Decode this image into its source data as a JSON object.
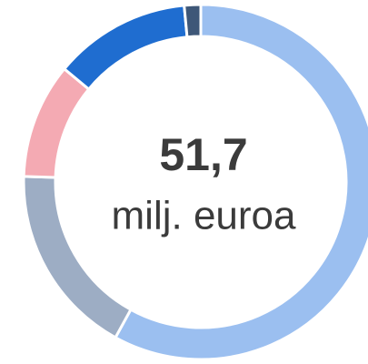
{
  "chart_data": {
    "type": "donut",
    "values": [
      58,
      17.5,
      10.5,
      12.5,
      1.5
    ],
    "colors": [
      "#9bbff0",
      "#9dadc4",
      "#f4aab3",
      "#1f6dd0",
      "#3e5778"
    ],
    "center_value": "51,7",
    "center_label": "milj. euroa"
  }
}
